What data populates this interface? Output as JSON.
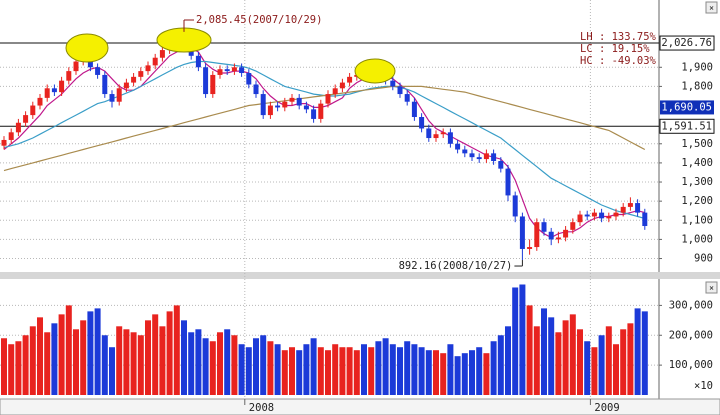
{
  "chart_data": [
    {
      "type": "candlestick",
      "categories": [
        null,
        null,
        null,
        null,
        null,
        null,
        null,
        null,
        null,
        null,
        null,
        null,
        null,
        null,
        null,
        null,
        null,
        null,
        null,
        null,
        null,
        null,
        null,
        null,
        null,
        null,
        null,
        null,
        null,
        null,
        null,
        null,
        null,
        null,
        "2008",
        null,
        null,
        null,
        null,
        null,
        null,
        null,
        null,
        null,
        null,
        null,
        null,
        null,
        null,
        null,
        null,
        null,
        null,
        null,
        null,
        null,
        null,
        null,
        null,
        null,
        null,
        null,
        null,
        null,
        null,
        null,
        null,
        null,
        null,
        null,
        null,
        null,
        null,
        null,
        null,
        null,
        null,
        null,
        null,
        null,
        null,
        null,
        "2009",
        null,
        null,
        null,
        null,
        null,
        null,
        null
      ],
      "open": [
        1490,
        1520,
        1560,
        1610,
        1650,
        1700,
        1740,
        1790,
        1770,
        1830,
        1880,
        1930,
        1960,
        1900,
        1860,
        1760,
        1720,
        1790,
        1820,
        1850,
        1880,
        1910,
        1950,
        1990,
        2010,
        2040,
        2000,
        1960,
        1900,
        1760,
        1860,
        1890,
        1880,
        1900,
        1870,
        1810,
        1760,
        1650,
        1700,
        1690,
        1720,
        1740,
        1700,
        1680,
        1630,
        1710,
        1760,
        1790,
        1820,
        1850,
        1860,
        1850,
        1870,
        1840,
        1830,
        1800,
        1760,
        1720,
        1640,
        1580,
        1530,
        1550,
        1560,
        1500,
        1470,
        1450,
        1430,
        1420,
        1450,
        1410,
        1370,
        1230,
        1120,
        950,
        960,
        1090,
        1040,
        1000,
        1010,
        1050,
        1090,
        1130,
        1120,
        1140,
        1110,
        1120,
        1140,
        1170,
        1190,
        1140
      ],
      "high": [
        1540,
        1580,
        1630,
        1670,
        1720,
        1760,
        1810,
        1810,
        1850,
        1900,
        1950,
        1990,
        1980,
        1920,
        1880,
        1780,
        1810,
        1840,
        1870,
        1900,
        1930,
        1970,
        2010,
        2040,
        2060,
        2085.45,
        2020,
        1980,
        1920,
        1880,
        1910,
        1910,
        1920,
        1920,
        1890,
        1830,
        1780,
        1720,
        1720,
        1740,
        1760,
        1760,
        1720,
        1700,
        1730,
        1780,
        1810,
        1840,
        1870,
        1890,
        1880,
        1900,
        1890,
        1860,
        1850,
        1820,
        1780,
        1740,
        1660,
        1600,
        1570,
        1580,
        1580,
        1520,
        1490,
        1470,
        1450,
        1470,
        1470,
        1430,
        1390,
        1250,
        1140,
        1000,
        1110,
        1110,
        1060,
        1040,
        1070,
        1110,
        1150,
        1150,
        1160,
        1160,
        1140,
        1160,
        1190,
        1220,
        1210,
        1160
      ],
      "low": [
        1470,
        1500,
        1540,
        1590,
        1630,
        1680,
        1720,
        1750,
        1750,
        1810,
        1860,
        1910,
        1880,
        1840,
        1740,
        1690,
        1700,
        1770,
        1800,
        1830,
        1860,
        1890,
        1930,
        1970,
        1990,
        1980,
        1940,
        1880,
        1740,
        1740,
        1840,
        1860,
        1860,
        1850,
        1790,
        1740,
        1630,
        1630,
        1670,
        1670,
        1700,
        1680,
        1660,
        1610,
        1610,
        1690,
        1740,
        1770,
        1800,
        1830,
        1830,
        1830,
        1820,
        1810,
        1780,
        1740,
        1700,
        1620,
        1560,
        1510,
        1510,
        1530,
        1480,
        1450,
        1430,
        1410,
        1400,
        1400,
        1390,
        1350,
        1200,
        1090,
        892.16,
        920,
        940,
        1020,
        970,
        980,
        990,
        1030,
        1070,
        1100,
        1100,
        1090,
        1090,
        1100,
        1120,
        1150,
        1120,
        1050
      ],
      "close": [
        1520,
        1560,
        1610,
        1650,
        1700,
        1740,
        1790,
        1770,
        1830,
        1880,
        1930,
        1960,
        1900,
        1860,
        1760,
        1720,
        1790,
        1820,
        1850,
        1880,
        1910,
        1950,
        1990,
        2010,
        2040,
        2000,
        1960,
        1900,
        1760,
        1860,
        1890,
        1880,
        1900,
        1870,
        1810,
        1760,
        1650,
        1700,
        1690,
        1720,
        1740,
        1700,
        1680,
        1630,
        1710,
        1760,
        1790,
        1820,
        1850,
        1860,
        1850,
        1870,
        1840,
        1830,
        1800,
        1760,
        1720,
        1640,
        1580,
        1530,
        1550,
        1560,
        1500,
        1470,
        1450,
        1430,
        1420,
        1450,
        1410,
        1370,
        1230,
        1120,
        950,
        960,
        1090,
        1040,
        1000,
        1010,
        1050,
        1090,
        1130,
        1120,
        1140,
        1110,
        1120,
        1140,
        1170,
        1190,
        1140,
        1070
      ],
      "up_color": "#e8231f",
      "down_color": "#1c3ad8",
      "moving_averages": [
        {
          "color": "#c0188c",
          "values": [
            1470,
            1500,
            1530,
            1570,
            1610,
            1650,
            1700,
            1730,
            1760,
            1800,
            1840,
            1870,
            1890,
            1900,
            1880,
            1840,
            1800,
            1780,
            1780,
            1800,
            1840,
            1880,
            1920,
            1960,
            1980,
            2000,
            2000,
            1980,
            1920,
            1890,
            1870,
            1870,
            1880,
            1880,
            1870,
            1840,
            1790,
            1750,
            1720,
            1700,
            1700,
            1710,
            1710,
            1690,
            1690,
            1700,
            1720,
            1740,
            1790,
            1820,
            1840,
            1850,
            1855,
            1850,
            1840,
            1810,
            1780,
            1740,
            1680,
            1620,
            1580,
            1560,
            1540,
            1520,
            1500,
            1480,
            1460,
            1440,
            1430,
            1420,
            1380,
            1310,
            1210,
            1110,
            1060,
            1030,
            1010,
            1030,
            1040,
            1040,
            1060,
            1090,
            1110,
            1120,
            1120,
            1130,
            1130,
            1140,
            1150,
            1140
          ]
        },
        {
          "color": "#3a9ec8",
          "values": [
            1480,
            1490,
            1500,
            1515,
            1530,
            1550,
            1570,
            1590,
            1610,
            1630,
            1650,
            1670,
            1690,
            1710,
            1720,
            1735,
            1750,
            1765,
            1780,
            1800,
            1820,
            1840,
            1860,
            1880,
            1900,
            1915,
            1925,
            1930,
            1930,
            1925,
            1920,
            1915,
            1910,
            1905,
            1895,
            1880,
            1860,
            1840,
            1820,
            1800,
            1790,
            1780,
            1770,
            1760,
            1755,
            1750,
            1750,
            1755,
            1760,
            1770,
            1780,
            1790,
            1795,
            1800,
            1800,
            1795,
            1785,
            1770,
            1750,
            1730,
            1710,
            1690,
            1670,
            1650,
            1630,
            1610,
            1590,
            1570,
            1550,
            1530,
            1500,
            1470,
            1440,
            1410,
            1380,
            1350,
            1320,
            1300,
            1280,
            1260,
            1240,
            1220,
            1200,
            1180,
            1165,
            1150,
            1140,
            1130,
            1120,
            1110
          ]
        },
        {
          "color": "#a98b4e",
          "values": [
            1360,
            1370,
            1380,
            1390,
            1400,
            1410,
            1420,
            1430,
            1440,
            1450,
            1460,
            1470,
            1480,
            1490,
            1500,
            1510,
            1520,
            1530,
            1540,
            1550,
            1560,
            1570,
            1580,
            1590,
            1600,
            1610,
            1620,
            1630,
            1640,
            1650,
            1660,
            1670,
            1680,
            1690,
            1700,
            1705,
            1710,
            1715,
            1720,
            1725,
            1730,
            1735,
            1740,
            1745,
            1750,
            1755,
            1760,
            1765,
            1770,
            1775,
            1780,
            1785,
            1790,
            1795,
            1800,
            1800,
            1800,
            1800,
            1800,
            1795,
            1790,
            1785,
            1780,
            1775,
            1770,
            1760,
            1750,
            1740,
            1730,
            1720,
            1710,
            1700,
            1690,
            1680,
            1670,
            1660,
            1650,
            1640,
            1630,
            1620,
            1610,
            1600,
            1590,
            1580,
            1570,
            1550,
            1530,
            1510,
            1490,
            1470
          ]
        }
      ],
      "ylim": [
        840,
        2210
      ],
      "yticks": [
        900,
        {
          "value": 1000,
          "label": "1,000"
        },
        {
          "value": 1100,
          "label": "1,100"
        },
        {
          "value": 1200,
          "label": "1,200"
        },
        {
          "value": 1300,
          "label": "1,300"
        },
        {
          "value": 1400,
          "label": "1,400"
        },
        {
          "value": 1500,
          "label": "1,500"
        },
        {
          "value": 1800,
          "label": "1,800"
        },
        {
          "value": 1900,
          "label": "1,900"
        }
      ],
      "grid": true,
      "reference_lines": [
        {
          "value": 2026.76,
          "label": "2,026.76"
        },
        {
          "value": 1591.51,
          "label": "1,591.51"
        }
      ],
      "price_marker": {
        "value": 1690.05,
        "label": "1,690.05"
      },
      "stats": [
        "LH : 133.75%",
        "LC : 19.15%",
        "HC : -49.03%"
      ],
      "annotations": [
        {
          "value": 2085.45,
          "text": "2,085.45(2007/10/29)"
        },
        {
          "value": 892.16,
          "text": "892.16(2008/10/27)"
        }
      ]
    },
    {
      "type": "bar",
      "values": [
        190000,
        170000,
        180000,
        200000,
        230000,
        260000,
        210000,
        240000,
        270000,
        300000,
        220000,
        250000,
        280000,
        290000,
        200000,
        160000,
        230000,
        220000,
        210000,
        200000,
        250000,
        270000,
        230000,
        280000,
        300000,
        250000,
        210000,
        220000,
        190000,
        180000,
        210000,
        220000,
        200000,
        170000,
        160000,
        190000,
        200000,
        180000,
        170000,
        150000,
        160000,
        150000,
        170000,
        190000,
        160000,
        150000,
        170000,
        160000,
        160000,
        150000,
        170000,
        160000,
        180000,
        190000,
        170000,
        160000,
        180000,
        170000,
        160000,
        150000,
        150000,
        140000,
        170000,
        130000,
        140000,
        150000,
        160000,
        140000,
        180000,
        200000,
        230000,
        360000,
        370000,
        300000,
        230000,
        290000,
        260000,
        210000,
        250000,
        270000,
        220000,
        180000,
        160000,
        200000,
        230000,
        170000,
        220000,
        240000,
        290000,
        280000
      ],
      "ylim": [
        0,
        375000
      ],
      "yticks": [
        {
          "value": 100000,
          "label": "100,000"
        },
        {
          "value": 200000,
          "label": "200,000"
        },
        {
          "value": 300000,
          "label": "300,000"
        }
      ],
      "unit_label": "×10",
      "grid": true
    }
  ]
}
